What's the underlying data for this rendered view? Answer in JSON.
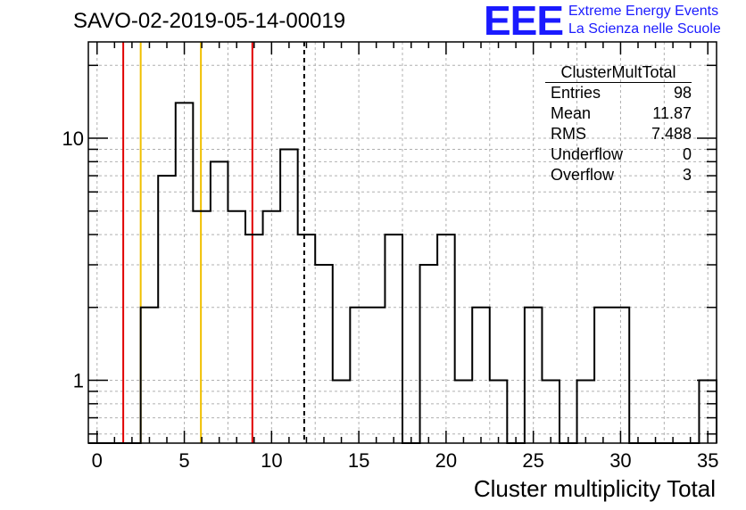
{
  "header": {
    "title": "SAVO-02-2019-05-14-00019",
    "logo_mark": "EEE",
    "logo_line1": "Extreme Energy Events",
    "logo_line2": "La Scienza nelle Scuole"
  },
  "stats_box": {
    "title": "ClusterMultTotal",
    "rows": [
      {
        "label": "Entries",
        "value": "98"
      },
      {
        "label": "Mean",
        "value": "11.87"
      },
      {
        "label": "RMS",
        "value": "7.488"
      },
      {
        "label": "Underflow",
        "value": "0"
      },
      {
        "label": "Overflow",
        "value": "3"
      }
    ]
  },
  "colors": {
    "red_line": "#e00000",
    "yellow_line": "#f0c000",
    "histogram": "#000000",
    "grid": "#b0b0b0",
    "logo": "#1a1aff"
  },
  "chart_data": {
    "type": "histogram",
    "title": "SAVO-02-2019-05-14-00019",
    "xlabel": "Cluster multiplicity Total",
    "ylabel": "",
    "y_scale": "log",
    "xlim": [
      -0.5,
      35.5
    ],
    "ylim": [
      0.55,
      25
    ],
    "bin_width": 1,
    "bins": [
      {
        "x": 0,
        "count": 0
      },
      {
        "x": 1,
        "count": 0
      },
      {
        "x": 2,
        "count": 0
      },
      {
        "x": 3,
        "count": 2
      },
      {
        "x": 4,
        "count": 7
      },
      {
        "x": 5,
        "count": 14
      },
      {
        "x": 6,
        "count": 5
      },
      {
        "x": 7,
        "count": 8
      },
      {
        "x": 8,
        "count": 5
      },
      {
        "x": 9,
        "count": 4
      },
      {
        "x": 10,
        "count": 5
      },
      {
        "x": 11,
        "count": 9
      },
      {
        "x": 12,
        "count": 4
      },
      {
        "x": 13,
        "count": 3
      },
      {
        "x": 14,
        "count": 1
      },
      {
        "x": 15,
        "count": 2
      },
      {
        "x": 16,
        "count": 2
      },
      {
        "x": 17,
        "count": 4
      },
      {
        "x": 18,
        "count": 0
      },
      {
        "x": 19,
        "count": 3
      },
      {
        "x": 20,
        "count": 4
      },
      {
        "x": 21,
        "count": 1
      },
      {
        "x": 22,
        "count": 2
      },
      {
        "x": 23,
        "count": 1
      },
      {
        "x": 24,
        "count": 0
      },
      {
        "x": 25,
        "count": 2
      },
      {
        "x": 26,
        "count": 1
      },
      {
        "x": 27,
        "count": 0
      },
      {
        "x": 28,
        "count": 1
      },
      {
        "x": 29,
        "count": 2
      },
      {
        "x": 30,
        "count": 2
      },
      {
        "x": 31,
        "count": 0
      },
      {
        "x": 32,
        "count": 0
      },
      {
        "x": 33,
        "count": 0
      },
      {
        "x": 34,
        "count": 0
      },
      {
        "x": 35,
        "count": 1
      }
    ],
    "x_ticks": [
      0,
      5,
      10,
      15,
      20,
      25,
      30,
      35
    ],
    "y_ticks": [
      1,
      10
    ],
    "grid": true,
    "vertical_lines": [
      {
        "x": 1.5,
        "color": "red",
        "style": "solid"
      },
      {
        "x": 2.5,
        "color": "yellow",
        "style": "solid"
      },
      {
        "x": 5.95,
        "color": "yellow",
        "style": "solid"
      },
      {
        "x": 8.9,
        "color": "red",
        "style": "solid"
      },
      {
        "x": 11.87,
        "color": "black",
        "style": "dashed"
      }
    ]
  }
}
